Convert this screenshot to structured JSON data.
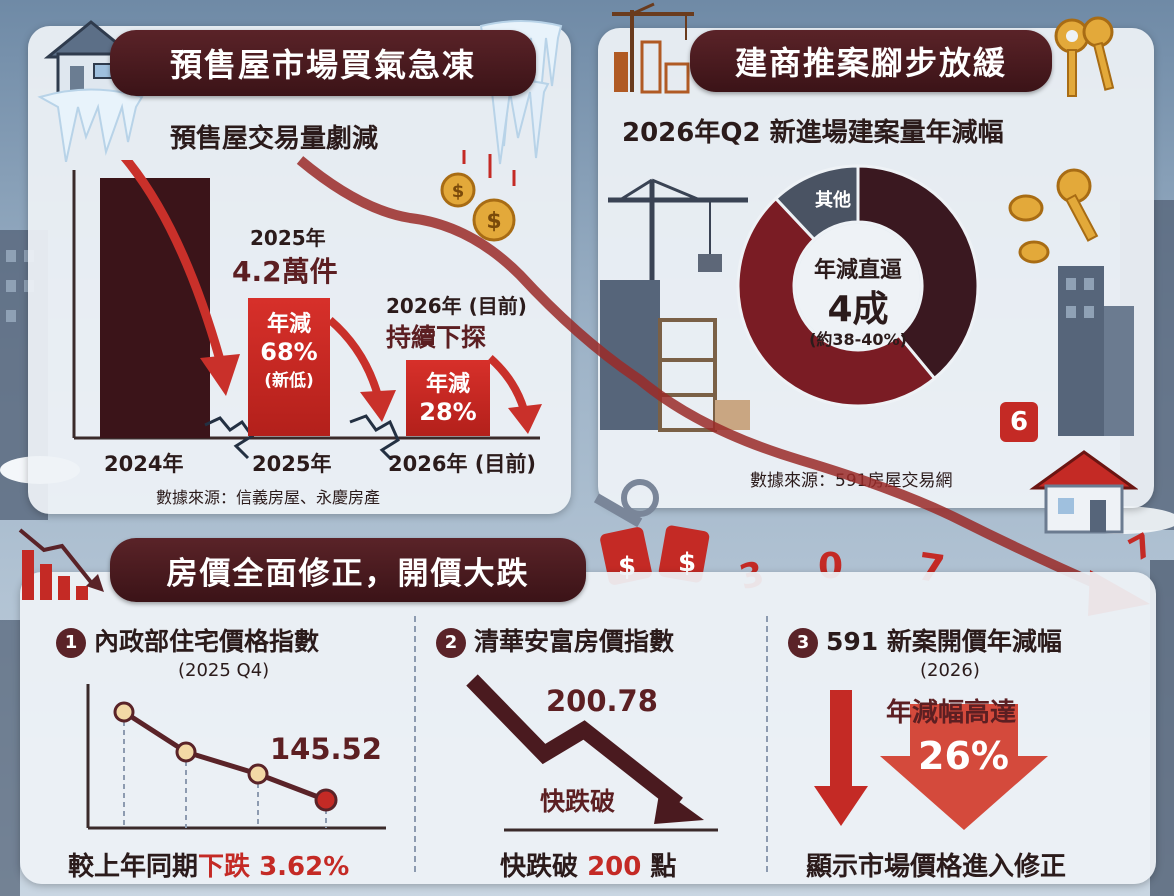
{
  "presale": {
    "banner": "預售屋市場買氣急凍",
    "subtitle": "預售屋交易量劇減",
    "bar2025_year": "2025年",
    "bar2025_value": "4.2萬件",
    "bar2025_box_l1": "年減",
    "bar2025_box_l2": "68%",
    "bar2025_box_l3": "(新低)",
    "bar2026_year": "2026年 (目前)",
    "bar2026_note": "持續下探",
    "bar2026_box_l1": "年減",
    "bar2026_box_l2": "28%",
    "x_labels": [
      "2024年",
      "2025年",
      "2026年 (目前)"
    ],
    "source": "數據來源：信義房屋、永慶房產"
  },
  "builder": {
    "banner": "建商推案腳步放緩",
    "title": "2026年Q2 新進場建案量年減幅",
    "donut_other": "其他",
    "center_l1": "年減直逼",
    "center_l2": "4成",
    "center_l3": "(約38-40%)",
    "source": "數據來源：591房屋交易網"
  },
  "chart_data": {
    "type": "pie",
    "title": "2026年Q2 新進場建案量年減幅",
    "categories": [
      "年減",
      "其他"
    ],
    "values": [
      39,
      61
    ],
    "colors": [
      "#7a1c24",
      "#3a1820"
    ],
    "other_color": "#4a5363"
  },
  "prices": {
    "banner": "房價全面修正，開價大跌",
    "item1_num": "1",
    "item1_title": "內政部住宅價格指數",
    "item1_sub": "(2025 Q4)",
    "item1_value": "145.52",
    "item1_footer_a": "較上年同期",
    "item1_footer_b": "下跌 3.62%",
    "item2_num": "2",
    "item2_title": "清華安富房價指數",
    "item2_value": "200.78",
    "item2_mid": "快跌破",
    "item2_footer_a": "快跌破 ",
    "item2_footer_b": "200",
    "item2_footer_c": " 點",
    "item3_num": "3",
    "item3_title": "591 新案開價年減幅",
    "item3_sub": "(2026)",
    "item3_l1": "年減幅高達",
    "item3_l2": "26%",
    "item3_footer": "顯示市場價格進入修正"
  },
  "deco": {
    "tag_symbol": "$",
    "digits": [
      "3",
      "0",
      "7",
      "7"
    ],
    "cube_digit": "6"
  },
  "colors": {
    "maroon": "#5a2328",
    "red": "#c42a25",
    "panel": "#eef2f6"
  }
}
